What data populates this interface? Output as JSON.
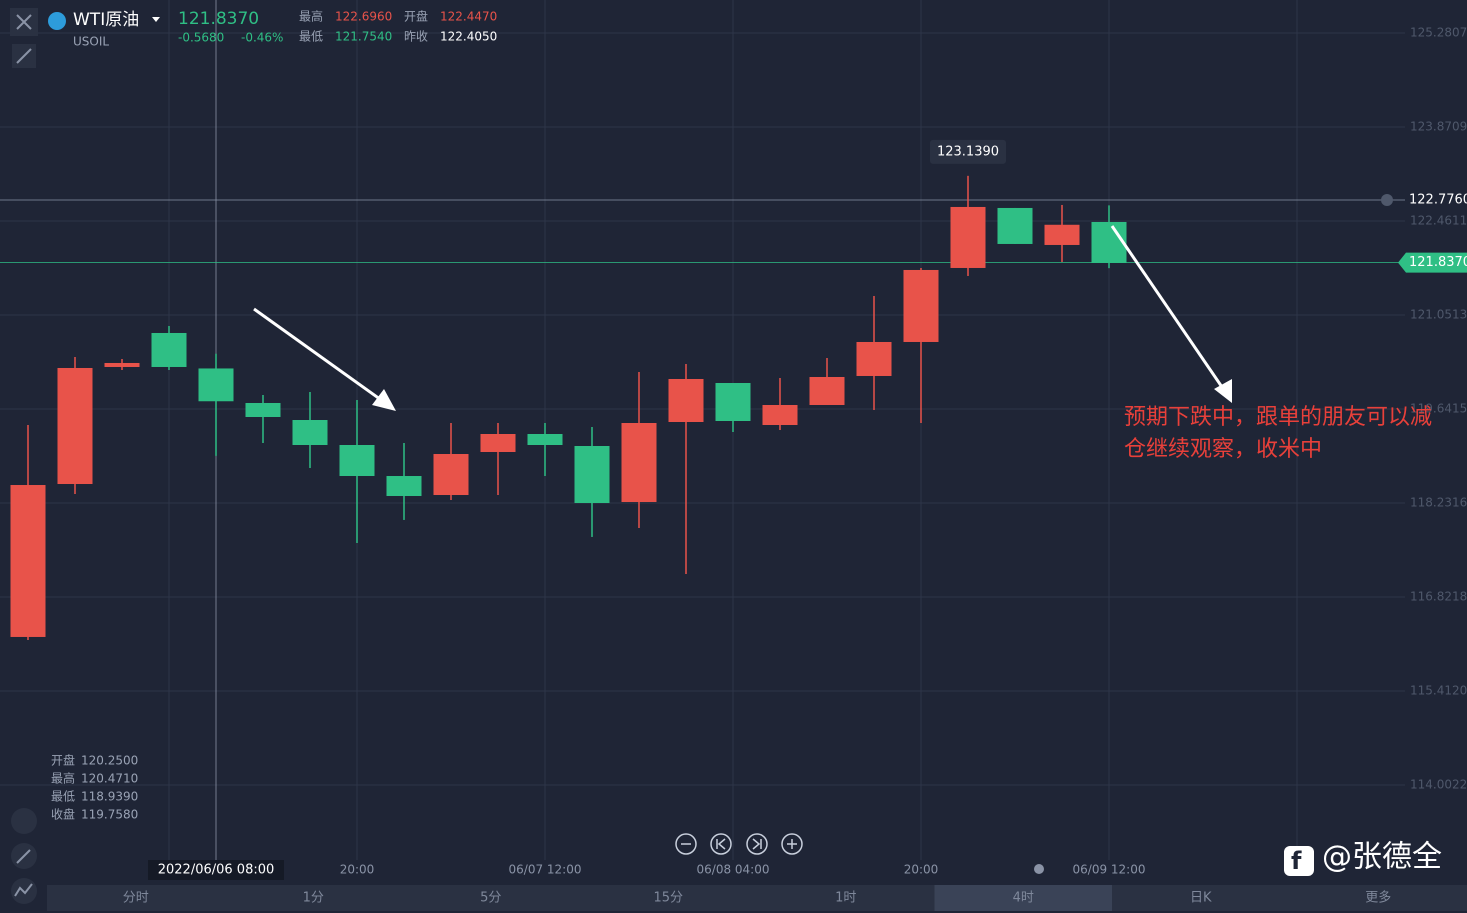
{
  "header": {
    "name": "WTI原油",
    "symbol": "USOIL",
    "price": "121.8370",
    "change": "-0.5680",
    "change_pct": "-0.46%",
    "stats": [
      {
        "label": "最高",
        "value": "122.6960"
      },
      {
        "label": "开盘",
        "value": "122.4470"
      },
      {
        "label": "最低",
        "value": "121.7540"
      },
      {
        "label": "昨收",
        "value": "122.4050"
      }
    ]
  },
  "ohlc_panel": [
    {
      "label": "开盘",
      "value": "120.2500"
    },
    {
      "label": "最高",
      "value": "120.4710"
    },
    {
      "label": "最低",
      "value": "118.9390"
    },
    {
      "label": "收盘",
      "value": "119.7580"
    }
  ],
  "annotation": [
    "预期下跌中，跟单的朋友可以减",
    "仓继续观察，收米中"
  ],
  "watermark": "@张德全",
  "timeframes": {
    "items": [
      "分时",
      "1分",
      "5分",
      "15分",
      "1时",
      "4时",
      "日K",
      "更多"
    ],
    "active": 5
  },
  "chart_data": {
    "type": "candlestick",
    "categories": [
      null,
      null,
      null,
      null,
      null,
      null,
      null,
      "20:00",
      null,
      null,
      null,
      "06/07 12:00",
      null,
      null,
      null,
      "06/08 04:00",
      null,
      null,
      null,
      "20:00",
      null,
      null,
      null,
      "06/09 12:00"
    ],
    "open": [
      116.223,
      118.517,
      120.272,
      120.782,
      120.25,
      119.732,
      119.477,
      119.102,
      118.637,
      118.352,
      118.997,
      119.267,
      119.087,
      118.247,
      119.447,
      120.032,
      119.402,
      119.702,
      120.137,
      120.647,
      121.757,
      122.657,
      122.102,
      122.447
    ],
    "high": [
      119.402,
      120.422,
      120.392,
      120.887,
      120.471,
      119.852,
      119.897,
      119.777,
      119.132,
      119.432,
      119.432,
      119.432,
      119.372,
      120.197,
      120.317,
      120.032,
      120.107,
      120.407,
      121.337,
      121.757,
      123.139,
      122.657,
      122.702,
      122.696
    ],
    "low": [
      116.178,
      118.367,
      120.227,
      120.227,
      118.939,
      119.132,
      118.757,
      117.633,
      117.978,
      118.277,
      118.352,
      118.637,
      117.723,
      117.858,
      117.168,
      119.297,
      119.327,
      119.702,
      119.627,
      119.432,
      121.637,
      122.117,
      121.847,
      121.754
    ],
    "close": [
      118.502,
      120.257,
      120.332,
      120.272,
      119.758,
      119.522,
      119.102,
      118.637,
      118.337,
      118.967,
      119.267,
      119.102,
      118.232,
      119.432,
      120.092,
      119.462,
      119.702,
      120.122,
      120.647,
      121.727,
      122.672,
      122.117,
      122.405,
      121.837
    ],
    "up_color": "#e8534a",
    "down_color": "#2fbf85",
    "ylim": [
      112.878,
      125.776
    ],
    "yticks": [
      125.2807,
      123.8709,
      122.4611,
      121.0513,
      119.6415,
      118.2316,
      116.8218,
      {
        "value": 115.412,
        "label": "115.4120"
      },
      114.0022
    ],
    "grid": true,
    "last_price": {
      "value": 121.837,
      "label": "121.8370"
    },
    "crosshair_price": {
      "value": 122.776,
      "label": "122.7760"
    },
    "crosshair_time": "2022/06/06 08:00",
    "high_tooltip": {
      "value": 123.139,
      "label": "123.1390"
    }
  }
}
